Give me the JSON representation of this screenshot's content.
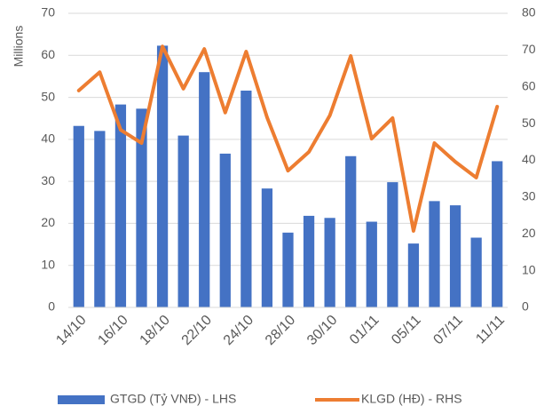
{
  "chart_data": {
    "type": "combo",
    "y_label": "Millions",
    "categories": [
      "14/10",
      null,
      "16/10",
      null,
      "18/10",
      null,
      "22/10",
      null,
      "24/10",
      null,
      "28/10",
      null,
      "30/10",
      null,
      "01/11",
      null,
      "05/11",
      null,
      "07/11",
      null,
      "11/11"
    ],
    "series": [
      {
        "name": "GTGD (Tỷ VNĐ) - LHS",
        "type": "bar",
        "color": "#4472c4",
        "axis": "y",
        "values": [
          43.2,
          42,
          48.3,
          47.3,
          62.3,
          40.9,
          56,
          36.6,
          51.6,
          28.3,
          17.8,
          21.8,
          21.3,
          36,
          20.4,
          29.8,
          15.2,
          25.3,
          24.3,
          16.6,
          34.8
        ]
      },
      {
        "name": "KLGD (HĐ) - RHS",
        "type": "line",
        "color": "#ed7d31",
        "axis": "y2",
        "values": [
          59,
          64,
          48.3,
          44.7,
          71,
          59.5,
          70.3,
          53,
          69.6,
          51.7,
          37.2,
          42.3,
          52.2,
          68.4,
          45.9,
          51.5,
          20.8,
          44.7,
          39.6,
          35.3,
          54.6
        ]
      }
    ],
    "ylim": [
      0,
      70
    ],
    "yticks": [
      0,
      10,
      20,
      30,
      40,
      50,
      60,
      70
    ],
    "y2lim": [
      0,
      80
    ],
    "y2ticks": [
      0,
      10,
      20,
      30,
      40,
      50,
      60,
      70,
      80
    ],
    "grid": true,
    "legend": "bottom"
  }
}
